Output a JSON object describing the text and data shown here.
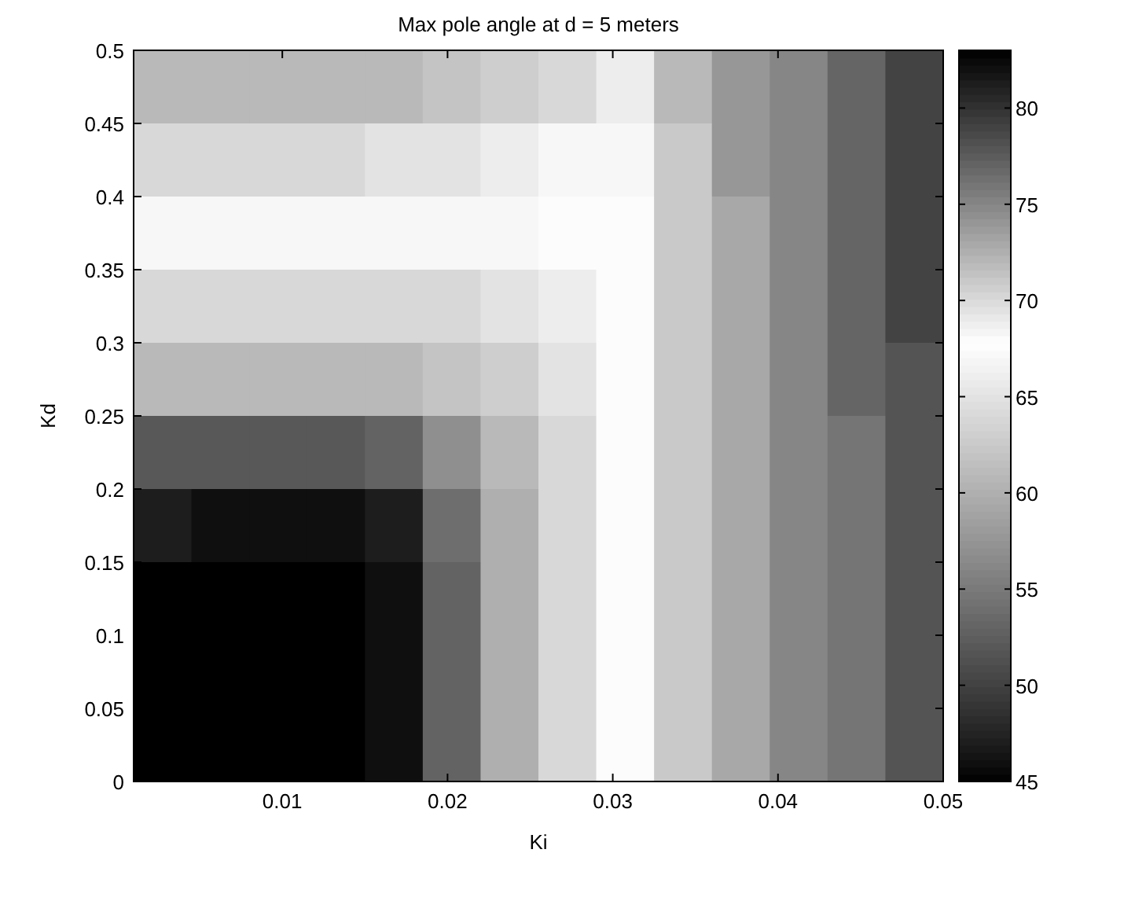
{
  "chart_data": {
    "type": "heatmap",
    "title": "Max pole angle at d = 5 meters",
    "xlabel": "Ki",
    "ylabel": "Kd",
    "x": [
      0.00275,
      0.00625,
      0.00975,
      0.01325,
      0.01675,
      0.02025,
      0.02375,
      0.02725,
      0.03075,
      0.03425,
      0.03775,
      0.04125,
      0.04475,
      0.04825
    ],
    "y": [
      0.475,
      0.425,
      0.375,
      0.325,
      0.275,
      0.225,
      0.175,
      0.125,
      0.075,
      0.025
    ],
    "xlim": [
      0.001,
      0.05
    ],
    "xticks": [
      0.01,
      0.02,
      0.03,
      0.04,
      0.05
    ],
    "ylim": [
      0,
      0.5
    ],
    "yticks": [
      0,
      0.05,
      0.1,
      0.15,
      0.2,
      0.25,
      0.3,
      0.35,
      0.4,
      0.45,
      0.5
    ],
    "clim": [
      45,
      83
    ],
    "cticks": [
      45,
      50,
      55,
      60,
      65,
      70,
      75,
      80
    ],
    "cells": [
      [
        61,
        61,
        61,
        61,
        61,
        62,
        63,
        64,
        66,
        72,
        74,
        75,
        77,
        79
      ],
      [
        64,
        64,
        64,
        64,
        65,
        65,
        66,
        67,
        67,
        71,
        74,
        75,
        77,
        79
      ],
      [
        67,
        67,
        67,
        67,
        67,
        67,
        67,
        68,
        68,
        71,
        73,
        75,
        77,
        79
      ],
      [
        64,
        64,
        64,
        64,
        64,
        64,
        65,
        66,
        68,
        71,
        73,
        75,
        77,
        79
      ],
      [
        61,
        61,
        61,
        61,
        61,
        62,
        63,
        65,
        68,
        71,
        73,
        75,
        77,
        78
      ],
      [
        52,
        52,
        52,
        52,
        53,
        57,
        61,
        64,
        68,
        71,
        73,
        75,
        76,
        78
      ],
      [
        47,
        46,
        46,
        46,
        47,
        54,
        60,
        64,
        68,
        71,
        73,
        75,
        76,
        78
      ],
      [
        45,
        45,
        45,
        45,
        46,
        53,
        60,
        64,
        68,
        71,
        73,
        75,
        76,
        78
      ],
      [
        45,
        45,
        45,
        45,
        46,
        53,
        60,
        64,
        68,
        71,
        73,
        75,
        76,
        78
      ],
      [
        45,
        45,
        45,
        45,
        46,
        53,
        60,
        64,
        68,
        71,
        73,
        75,
        76,
        78
      ]
    ]
  }
}
